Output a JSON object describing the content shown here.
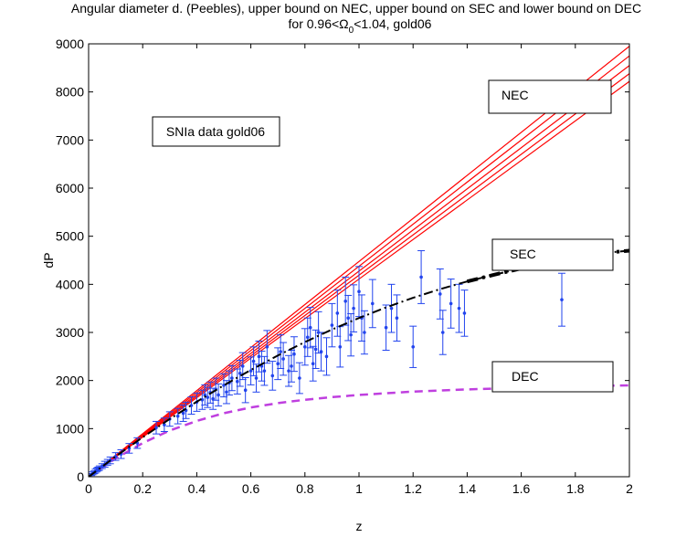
{
  "chart_data": {
    "type": "scatter",
    "title_line1": "Angular diameter d. (Peebles), upper bound on NEC, upper bound on SEC and lower bound on DEC",
    "title_line2_prefix": "for 0.96<Ω",
    "title_line2_sub": "0",
    "title_line2_suffix": "<1.04, gold06",
    "xlabel": "z",
    "ylabel": "dP",
    "xlim": [
      0,
      2
    ],
    "ylim": [
      0,
      9000
    ],
    "xticks": [
      0,
      0.2,
      0.4,
      0.6,
      0.8,
      1,
      1.2,
      1.4,
      1.6,
      1.8,
      2
    ],
    "xtick_labels": [
      "0",
      "0.2",
      "0.4",
      "0.6",
      "0.8",
      "1",
      "1.2",
      "1.4",
      "1.6",
      "1.8",
      "2"
    ],
    "yticks": [
      0,
      1000,
      2000,
      3000,
      4000,
      5000,
      6000,
      7000,
      8000,
      9000
    ],
    "ytick_labels": [
      "0",
      "1000",
      "2000",
      "3000",
      "4000",
      "5000",
      "6000",
      "7000",
      "8000",
      "9000"
    ],
    "annotations": {
      "data_label": "SNIa data gold06",
      "nec_label": "NEC",
      "sec_label": "SEC",
      "dec_label": "DEC"
    },
    "colors": {
      "nec": "#ff0000",
      "sec": "#000000",
      "dec": "#bf3fdf",
      "data": "#2244ee"
    },
    "series": [
      {
        "name": "NEC upper bounds",
        "style": "solid",
        "lines": [
          {
            "x": [
              0,
              2
            ],
            "y": [
              0,
              8950
            ]
          },
          {
            "x": [
              0,
              2
            ],
            "y": [
              0,
              8750
            ]
          },
          {
            "x": [
              0,
              2
            ],
            "y": [
              0,
              8550
            ]
          },
          {
            "x": [
              0,
              2
            ],
            "y": [
              0,
              8380
            ]
          },
          {
            "x": [
              0,
              2
            ],
            "y": [
              0,
              8220
            ]
          }
        ]
      },
      {
        "name": "SEC upper bound",
        "style": "dash-dot",
        "x": [
          0,
          0.1,
          0.2,
          0.3,
          0.4,
          0.5,
          0.6,
          0.7,
          0.8,
          0.9,
          1.0,
          1.1,
          1.2,
          1.3,
          1.4,
          1.5,
          1.6,
          1.7,
          1.8,
          1.9,
          2.0
        ],
        "y": [
          0,
          420,
          820,
          1200,
          1560,
          1900,
          2220,
          2520,
          2800,
          3060,
          3300,
          3520,
          3720,
          3900,
          4060,
          4200,
          4330,
          4450,
          4560,
          4650,
          4700
        ]
      },
      {
        "name": "DEC lower bound",
        "style": "dashed",
        "x": [
          0,
          0.1,
          0.2,
          0.3,
          0.4,
          0.5,
          0.6,
          0.7,
          0.8,
          0.9,
          1.0,
          1.2,
          1.4,
          1.6,
          1.8,
          2.0
        ],
        "y": [
          0,
          380,
          700,
          960,
          1160,
          1320,
          1440,
          1530,
          1600,
          1655,
          1700,
          1770,
          1815,
          1850,
          1880,
          1900
        ]
      },
      {
        "name": "SNIa data gold06",
        "style": "errorbar",
        "x": [
          0.01,
          0.015,
          0.02,
          0.025,
          0.03,
          0.035,
          0.04,
          0.05,
          0.06,
          0.07,
          0.08,
          0.1,
          0.12,
          0.15,
          0.18,
          0.25,
          0.28,
          0.3,
          0.33,
          0.35,
          0.36,
          0.38,
          0.4,
          0.42,
          0.43,
          0.44,
          0.45,
          0.46,
          0.47,
          0.48,
          0.5,
          0.51,
          0.52,
          0.53,
          0.55,
          0.56,
          0.57,
          0.58,
          0.6,
          0.61,
          0.62,
          0.63,
          0.64,
          0.65,
          0.66,
          0.68,
          0.7,
          0.71,
          0.72,
          0.74,
          0.75,
          0.76,
          0.78,
          0.8,
          0.81,
          0.82,
          0.83,
          0.84,
          0.85,
          0.86,
          0.88,
          0.9,
          0.92,
          0.93,
          0.95,
          0.96,
          0.97,
          0.98,
          1.0,
          1.01,
          1.02,
          1.05,
          1.1,
          1.12,
          1.14,
          1.2,
          1.23,
          1.3,
          1.31,
          1.34,
          1.37,
          1.39,
          1.75
        ],
        "y": [
          45,
          70,
          90,
          115,
          140,
          160,
          180,
          220,
          260,
          300,
          340,
          420,
          470,
          590,
          700,
          1020,
          1080,
          1200,
          1260,
          1320,
          1380,
          1480,
          1550,
          1600,
          1700,
          1650,
          1750,
          1620,
          1820,
          1700,
          1900,
          1760,
          1950,
          2050,
          1980,
          2150,
          2300,
          1800,
          2200,
          2400,
          2050,
          2500,
          2300,
          2200,
          2700,
          2100,
          2350,
          2600,
          2450,
          2200,
          2300,
          2550,
          2050,
          2700,
          2900,
          3100,
          2350,
          2650,
          3000,
          2600,
          2500,
          3150,
          3400,
          2700,
          3650,
          3300,
          2950,
          3500,
          3850,
          3300,
          3000,
          3600,
          3100,
          3500,
          3300,
          2700,
          4150,
          3800,
          3000,
          3600,
          3500,
          3400,
          3680
        ],
        "err": [
          20,
          30,
          30,
          40,
          40,
          40,
          45,
          50,
          60,
          60,
          70,
          80,
          90,
          100,
          110,
          130,
          140,
          150,
          160,
          170,
          170,
          180,
          190,
          200,
          210,
          210,
          220,
          220,
          230,
          230,
          240,
          240,
          250,
          260,
          260,
          270,
          280,
          260,
          290,
          300,
          290,
          320,
          310,
          300,
          340,
          300,
          330,
          350,
          340,
          320,
          330,
          360,
          320,
          380,
          400,
          420,
          360,
          400,
          430,
          400,
          390,
          450,
          480,
          420,
          500,
          470,
          440,
          490,
          520,
          480,
          450,
          500,
          470,
          500,
          480,
          430,
          550,
          520,
          460,
          510,
          500,
          480,
          550
        ]
      }
    ]
  }
}
